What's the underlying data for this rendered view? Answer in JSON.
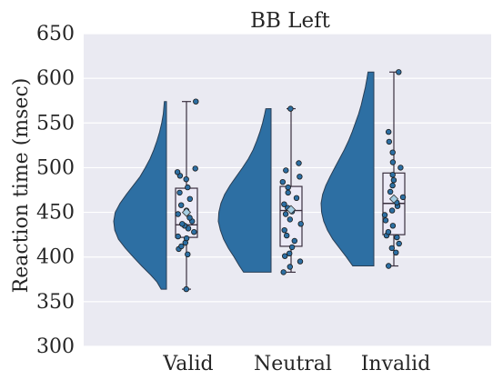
{
  "chart_data": {
    "type": "raincloud",
    "title": "BB Left",
    "xlabel": "",
    "ylabel": "Reaction time (msec)",
    "ylim": [
      300,
      650
    ],
    "yticks": [
      300,
      350,
      400,
      450,
      500,
      550,
      600,
      650
    ],
    "categories": [
      "Valid",
      "Neutral",
      "Invalid"
    ],
    "grid": true,
    "colors": {
      "background": "#eaeaf2",
      "grid": "#ffffff",
      "violin": "#2d6fa3",
      "box_fill": "#eceaf6",
      "box_stroke": "#3a2f3f",
      "point": "#2d6fa3",
      "mean_marker": "#a6cee3",
      "text": "#262626"
    },
    "series": [
      {
        "category": "Valid",
        "box": {
          "min": 364,
          "q1": 422,
          "median": 436,
          "q3": 477,
          "max": 574,
          "mean": 450
        },
        "violin_density": [
          [
            364,
            0.1
          ],
          [
            372,
            0.18
          ],
          [
            380,
            0.3
          ],
          [
            390,
            0.47
          ],
          [
            400,
            0.63
          ],
          [
            410,
            0.78
          ],
          [
            420,
            0.91
          ],
          [
            430,
            0.98
          ],
          [
            440,
            1.0
          ],
          [
            450,
            0.97
          ],
          [
            460,
            0.88
          ],
          [
            470,
            0.76
          ],
          [
            480,
            0.63
          ],
          [
            490,
            0.5
          ],
          [
            500,
            0.4
          ],
          [
            510,
            0.31
          ],
          [
            520,
            0.24
          ],
          [
            530,
            0.18
          ],
          [
            540,
            0.13
          ],
          [
            550,
            0.09
          ],
          [
            560,
            0.06
          ],
          [
            574,
            0.04
          ]
        ],
        "points": [
          364,
          403,
          409,
          412,
          416,
          421,
          423,
          428,
          432,
          435,
          437,
          440,
          444,
          448,
          452,
          458,
          465,
          472,
          478,
          487,
          491,
          495,
          499,
          574
        ]
      },
      {
        "category": "Neutral",
        "box": {
          "min": 383,
          "q1": 412,
          "median": 452,
          "q3": 479,
          "max": 566,
          "mean": 453
        },
        "violin_density": [
          [
            383,
            0.52
          ],
          [
            390,
            0.6
          ],
          [
            400,
            0.7
          ],
          [
            410,
            0.81
          ],
          [
            420,
            0.9
          ],
          [
            430,
            0.96
          ],
          [
            440,
            1.0
          ],
          [
            450,
            0.99
          ],
          [
            460,
            0.95
          ],
          [
            470,
            0.88
          ],
          [
            480,
            0.78
          ],
          [
            490,
            0.66
          ],
          [
            500,
            0.54
          ],
          [
            510,
            0.43
          ],
          [
            520,
            0.34
          ],
          [
            530,
            0.27
          ],
          [
            540,
            0.21
          ],
          [
            550,
            0.16
          ],
          [
            560,
            0.12
          ],
          [
            566,
            0.1
          ]
        ],
        "points": [
          383,
          389,
          395,
          401,
          404,
          411,
          418,
          424,
          430,
          437,
          442,
          448,
          451,
          455,
          459,
          466,
          472,
          478,
          484,
          490,
          497,
          505,
          566
        ]
      },
      {
        "category": "Invalid",
        "box": {
          "min": 390,
          "q1": 425,
          "median": 460,
          "q3": 494,
          "max": 607,
          "mean": 465
        },
        "violin_density": [
          [
            390,
            0.4
          ],
          [
            400,
            0.52
          ],
          [
            410,
            0.65
          ],
          [
            420,
            0.78
          ],
          [
            430,
            0.88
          ],
          [
            440,
            0.95
          ],
          [
            450,
            0.99
          ],
          [
            460,
            1.0
          ],
          [
            470,
            0.97
          ],
          [
            480,
            0.91
          ],
          [
            490,
            0.83
          ],
          [
            500,
            0.74
          ],
          [
            510,
            0.65
          ],
          [
            520,
            0.56
          ],
          [
            530,
            0.48
          ],
          [
            540,
            0.41
          ],
          [
            550,
            0.35
          ],
          [
            560,
            0.29
          ],
          [
            570,
            0.24
          ],
          [
            580,
            0.2
          ],
          [
            590,
            0.16
          ],
          [
            600,
            0.13
          ],
          [
            607,
            0.11
          ]
        ],
        "points": [
          390,
          405,
          410,
          415,
          422,
          424,
          428,
          435,
          441,
          447,
          452,
          457,
          461,
          467,
          473,
          480,
          486,
          492,
          500,
          506,
          517,
          529,
          540,
          607
        ]
      }
    ]
  }
}
